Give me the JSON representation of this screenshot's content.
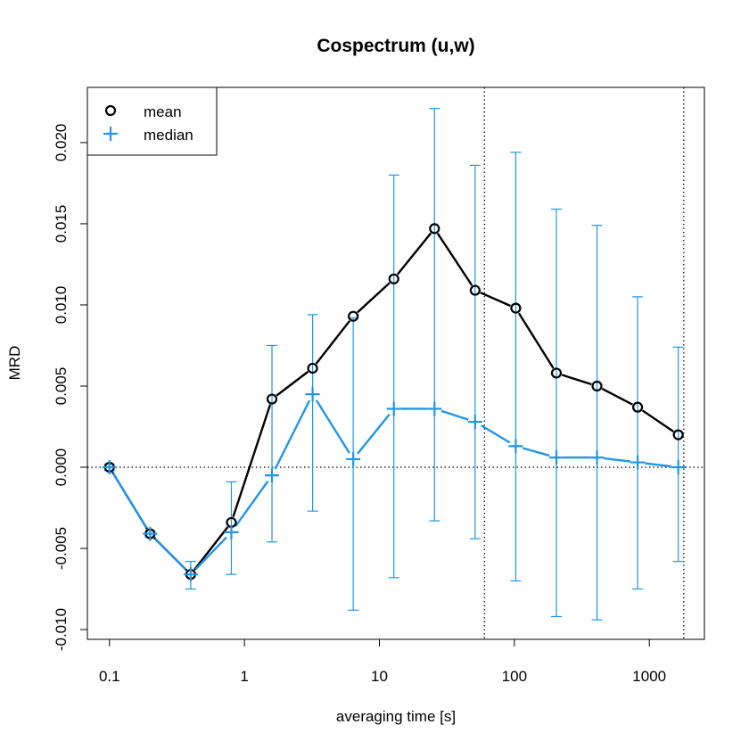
{
  "chart_data": {
    "type": "line",
    "title": "Cospectrum (u,w)",
    "xlabel": "averaging time [s]",
    "ylabel": "MRD",
    "x_scale": "log",
    "xlim": [
      0.0686,
      2560
    ],
    "ylim": [
      -0.0106,
      0.0234
    ],
    "x_ticks": [
      0.1,
      1,
      10,
      100,
      1000
    ],
    "x_tick_labels": [
      "0.1",
      "1",
      "10",
      "100",
      "1000"
    ],
    "y_ticks": [
      -0.01,
      -0.005,
      0.0,
      0.005,
      0.01,
      0.015,
      0.02
    ],
    "y_tick_labels": [
      "-0.010",
      "-0.005",
      "0.000",
      "0.005",
      "0.010",
      "0.015",
      "0.020"
    ],
    "x": [
      0.1,
      0.2,
      0.4,
      0.8,
      1.6,
      3.2,
      6.4,
      12.8,
      25.6,
      51.2,
      102.4,
      204.8,
      409.6,
      819.2,
      1638.4
    ],
    "series": [
      {
        "name": "mean",
        "color": "#000000",
        "marker": "circle",
        "values": [
          0.0,
          -0.0041,
          -0.0066,
          -0.0034,
          0.0042,
          0.0061,
          0.0093,
          0.0116,
          0.0147,
          0.0109,
          0.0098,
          0.0058,
          0.005,
          0.0037,
          0.002
        ]
      },
      {
        "name": "median",
        "color": "#2196e8",
        "marker": "plus",
        "values": [
          0.0,
          -0.0041,
          -0.0066,
          -0.004,
          -0.0005,
          0.0045,
          0.0005,
          0.0036,
          0.0036,
          0.0028,
          0.0013,
          0.0006,
          0.0006,
          0.0003,
          0.0
        ],
        "error_low": [
          -0.0002,
          -0.0043,
          -0.0075,
          -0.0066,
          -0.0046,
          -0.0027,
          -0.0088,
          -0.0068,
          -0.0033,
          -0.0044,
          -0.007,
          -0.0092,
          -0.0094,
          -0.0075,
          -0.0058
        ],
        "error_high": [
          0.0002,
          -0.0039,
          -0.0058,
          -0.0009,
          0.0075,
          0.0094,
          0.0092,
          0.018,
          0.0221,
          0.0186,
          0.0194,
          0.0159,
          0.0149,
          0.0105,
          0.0074
        ]
      }
    ],
    "reference_lines": {
      "horizontal_y": 0.0,
      "vertical_x": [
        60,
        1800
      ],
      "style": "dotted"
    },
    "grid": false,
    "legend_position": "top-left"
  }
}
